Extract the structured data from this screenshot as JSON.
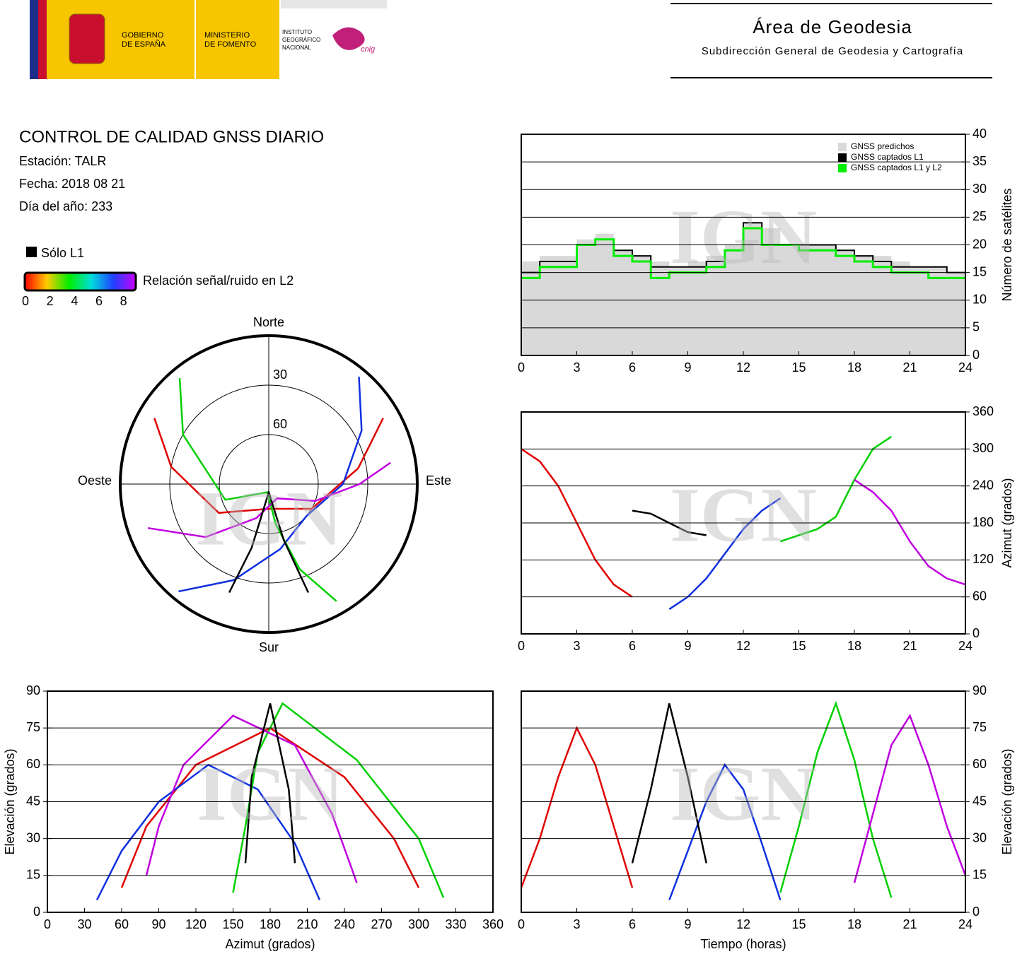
{
  "header": {
    "gov_1": "GOBIERNO",
    "gov_2": "DE ESPAÑA",
    "min_1": "MINISTERIO",
    "min_2": "DE FOMENTO",
    "ign_1": "INSTITUTO",
    "ign_2": "GEOGRÁFICO",
    "ign_3": "NACIONAL",
    "cnig": "cnig",
    "title": "Área de Geodesia",
    "subtitle": "Subdirección General de Geodesia y Cartografía"
  },
  "info": {
    "title": "CONTROL DE CALIDAD GNSS DIARIO",
    "station": "Estación: TALR",
    "date": "Fecha: 2018 08 21",
    "doy": "Día del año: 233"
  },
  "legend": {
    "l1_only": "Sólo L1",
    "l1_color": "#000000",
    "colorbar_label": "Relación señal/ruido en L2",
    "colorbar_lim": [
      0,
      9
    ],
    "colorbar_ticks": [
      0,
      2,
      4,
      6,
      8
    ]
  },
  "watermark": "IGN",
  "chart_data": [
    {
      "type": "step",
      "ylabel": "Número de satélites",
      "xlim": [
        0,
        24
      ],
      "xticks": [
        0,
        3,
        6,
        9,
        12,
        15,
        18,
        21,
        24
      ],
      "ylim": [
        0,
        40
      ],
      "yticks": [
        0,
        5,
        10,
        15,
        20,
        25,
        30,
        35,
        40
      ],
      "grid": true,
      "legend": "upper right",
      "x": [
        0,
        1,
        2,
        3,
        4,
        5,
        6,
        7,
        8,
        9,
        10,
        11,
        12,
        13,
        14,
        15,
        16,
        17,
        18,
        19,
        20,
        21,
        22,
        23,
        24
      ],
      "series": [
        {
          "name": "GNSS predichos",
          "color": "#d9d9d9",
          "style": "area",
          "values": [
            17,
            18,
            18,
            21,
            22,
            19,
            18,
            17,
            16,
            17,
            18,
            20,
            24,
            23,
            20,
            20,
            20,
            19,
            18,
            18,
            17,
            16,
            16,
            15,
            15
          ]
        },
        {
          "name": "GNSS captados L1",
          "color": "#000000",
          "style": "step",
          "values": [
            15,
            17,
            17,
            20,
            21,
            19,
            18,
            16,
            16,
            16,
            17,
            19,
            24,
            20,
            20,
            20,
            20,
            19,
            18,
            17,
            16,
            16,
            16,
            15,
            15
          ]
        },
        {
          "name": "GNSS captados L1 y L2",
          "color": "#00ee00",
          "style": "step",
          "values": [
            14,
            16,
            16,
            20,
            21,
            18,
            17,
            14,
            15,
            15,
            16,
            19,
            23,
            20,
            20,
            19,
            19,
            18,
            17,
            16,
            15,
            15,
            14,
            14,
            14
          ]
        }
      ]
    },
    {
      "type": "polar",
      "north": "Norte",
      "south": "Sur",
      "east": "Este",
      "west": "Oeste",
      "rings": [
        30,
        60
      ],
      "series": [
        {
          "color": "#e00000",
          "x": [
            300,
            280,
            240,
            180,
            120,
            80,
            60
          ],
          "values": [
            10,
            30,
            55,
            75,
            60,
            35,
            10
          ]
        },
        {
          "color": "#1030e0",
          "x": [
            40,
            60,
            90,
            130,
            170,
            200,
            220
          ],
          "values": [
            5,
            25,
            45,
            60,
            50,
            28,
            5
          ]
        },
        {
          "color": "#00d000",
          "x": [
            150,
            160,
            170,
            190,
            250,
            300,
            320
          ],
          "values": [
            8,
            35,
            65,
            85,
            62,
            30,
            6
          ]
        },
        {
          "color": "#c000e0",
          "x": [
            250,
            230,
            200,
            150,
            110,
            90,
            80
          ],
          "values": [
            12,
            40,
            68,
            80,
            60,
            35,
            15
          ]
        },
        {
          "color": "#000000",
          "x": [
            200,
            195,
            180,
            165,
            160
          ],
          "values": [
            20,
            50,
            85,
            55,
            20
          ]
        }
      ]
    },
    {
      "type": "line",
      "ylabel": "Azimut (grados)",
      "xlim": [
        0,
        24
      ],
      "xticks": [
        0,
        3,
        6,
        9,
        12,
        15,
        18,
        21,
        24
      ],
      "ylim": [
        0,
        360
      ],
      "yticks": [
        0,
        60,
        120,
        180,
        240,
        300,
        360
      ],
      "grid": true,
      "series": [
        {
          "color": "#e00000",
          "x": [
            0,
            1,
            2,
            3,
            4,
            5,
            6
          ],
          "values": [
            300,
            280,
            240,
            180,
            120,
            80,
            60
          ]
        },
        {
          "color": "#1030e0",
          "x": [
            8,
            9,
            10,
            11,
            12,
            13,
            14
          ],
          "values": [
            40,
            60,
            90,
            130,
            170,
            200,
            220
          ]
        },
        {
          "color": "#00d000",
          "x": [
            14,
            15,
            16,
            17,
            18,
            19,
            20
          ],
          "values": [
            150,
            160,
            170,
            190,
            250,
            300,
            320
          ]
        },
        {
          "color": "#c000e0",
          "x": [
            18,
            19,
            20,
            21,
            22,
            23,
            24
          ],
          "values": [
            250,
            230,
            200,
            150,
            110,
            90,
            80
          ]
        },
        {
          "color": "#000000",
          "x": [
            6,
            7,
            8,
            9,
            10
          ],
          "values": [
            200,
            195,
            180,
            165,
            160
          ]
        }
      ]
    },
    {
      "type": "line",
      "xlabel": "Azimut (grados)",
      "ylabel": "Elevación (grados)",
      "xlim": [
        0,
        360
      ],
      "xticks": [
        0,
        30,
        60,
        90,
        120,
        150,
        180,
        210,
        240,
        270,
        300,
        330,
        360
      ],
      "ylim": [
        0,
        90
      ],
      "yticks": [
        0,
        15,
        30,
        45,
        60,
        75,
        90
      ],
      "grid": true,
      "series": [
        {
          "color": "#e00000",
          "x": [
            300,
            280,
            240,
            180,
            120,
            80,
            60
          ],
          "values": [
            10,
            30,
            55,
            75,
            60,
            35,
            10
          ]
        },
        {
          "color": "#1030e0",
          "x": [
            40,
            60,
            90,
            130,
            170,
            200,
            220
          ],
          "values": [
            5,
            25,
            45,
            60,
            50,
            28,
            5
          ]
        },
        {
          "color": "#00d000",
          "x": [
            150,
            160,
            170,
            190,
            250,
            300,
            320
          ],
          "values": [
            8,
            35,
            65,
            85,
            62,
            30,
            6
          ]
        },
        {
          "color": "#c000e0",
          "x": [
            250,
            230,
            200,
            150,
            110,
            90,
            80
          ],
          "values": [
            12,
            40,
            68,
            80,
            60,
            35,
            15
          ]
        },
        {
          "color": "#000000",
          "x": [
            200,
            195,
            180,
            165,
            160
          ],
          "values": [
            20,
            50,
            85,
            55,
            20
          ]
        }
      ]
    },
    {
      "type": "line",
      "xlabel": "Tiempo (horas)",
      "ylabel": "Elevación (grados)",
      "xlim": [
        0,
        24
      ],
      "xticks": [
        0,
        3,
        6,
        9,
        12,
        15,
        18,
        21,
        24
      ],
      "ylim": [
        0,
        90
      ],
      "yticks": [
        0,
        15,
        30,
        45,
        60,
        75,
        90
      ],
      "grid": true,
      "series": [
        {
          "color": "#e00000",
          "x": [
            0,
            1,
            2,
            3,
            4,
            5,
            6
          ],
          "values": [
            10,
            30,
            55,
            75,
            60,
            35,
            10
          ]
        },
        {
          "color": "#1030e0",
          "x": [
            8,
            9,
            10,
            11,
            12,
            13,
            14
          ],
          "values": [
            5,
            25,
            45,
            60,
            50,
            28,
            5
          ]
        },
        {
          "color": "#00d000",
          "x": [
            14,
            15,
            16,
            17,
            18,
            19,
            20
          ],
          "values": [
            8,
            35,
            65,
            85,
            62,
            30,
            6
          ]
        },
        {
          "color": "#c000e0",
          "x": [
            18,
            19,
            20,
            21,
            22,
            23,
            24
          ],
          "values": [
            12,
            40,
            68,
            80,
            60,
            35,
            15
          ]
        },
        {
          "color": "#000000",
          "x": [
            6,
            7,
            8,
            9,
            10
          ],
          "values": [
            20,
            50,
            85,
            55,
            20
          ]
        }
      ]
    }
  ]
}
